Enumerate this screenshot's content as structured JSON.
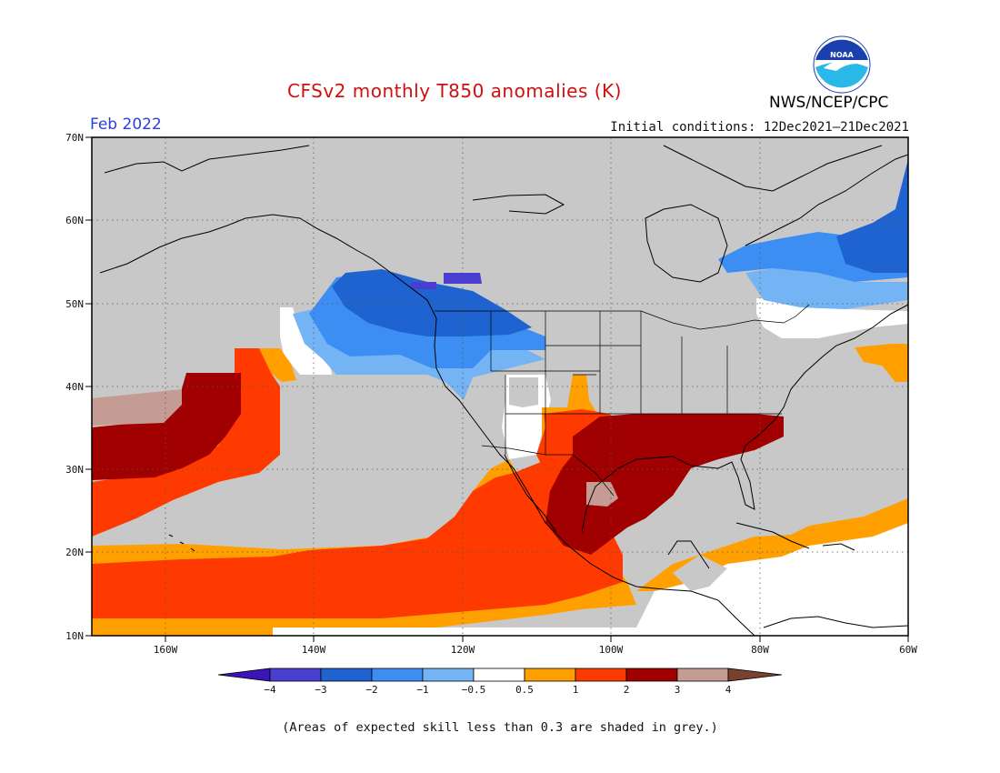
{
  "header": {
    "title": "CFSv2 monthly T850 anomalies (K)",
    "month": "Feb 2022",
    "initial_conditions": "Initial conditions: 12Dec2021–21Dec2021",
    "agency": "NWS/NCEP/CPC",
    "logo_text": "NOAA"
  },
  "axes": {
    "lat_labels": [
      "70N",
      "60N",
      "50N",
      "40N",
      "30N",
      "20N",
      "10N"
    ],
    "lon_labels": [
      "160W",
      "140W",
      "120W",
      "100W",
      "80W",
      "60W"
    ]
  },
  "colorbar": {
    "labels": [
      "−4",
      "−3",
      "−2",
      "−1",
      "−0.5",
      "0.5",
      "1",
      "2",
      "3",
      "4"
    ],
    "colors": [
      "#3a14b4",
      "#4a3ed0",
      "#1f63d0",
      "#3c8ef2",
      "#74b4f4",
      "#ffffff",
      "#ffa000",
      "#ff3a00",
      "#a00000",
      "#c49c94",
      "#7a4030"
    ]
  },
  "colors": {
    "grey_low_skill": "#c8c8c8",
    "cold_1": "#74b4f4",
    "cold_2": "#3c8ef2",
    "cold_3": "#1f63d0",
    "cold_4": "#4a3ed0",
    "neutral": "#ffffff",
    "warm_1": "#ffa000",
    "warm_2": "#ff3a00",
    "warm_3": "#a00000",
    "warm_4": "#c49c94"
  },
  "footnote": "(Areas of expected skill less than 0.3 are shaded in grey.)"
}
